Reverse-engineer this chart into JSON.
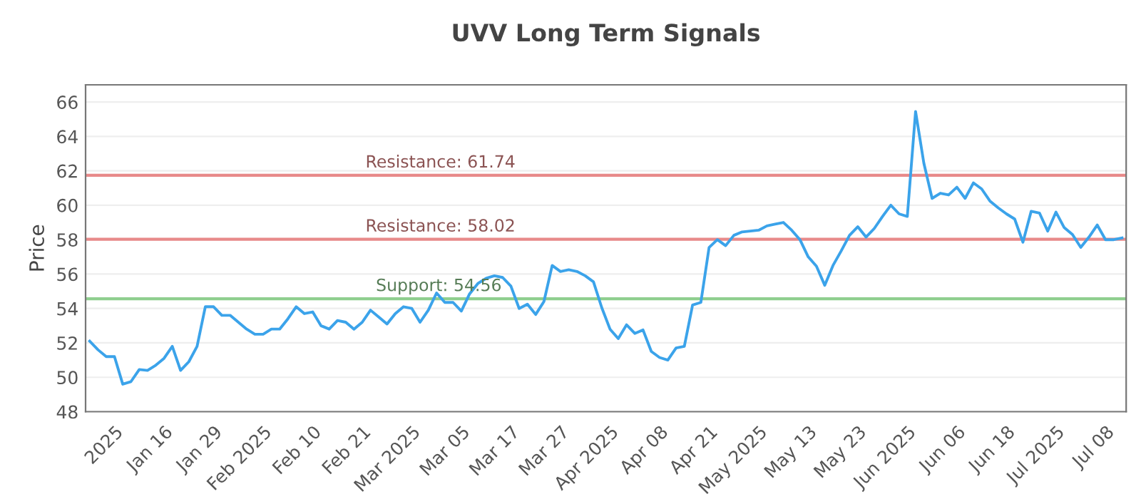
{
  "chart_data": {
    "type": "line",
    "title": "UVV Long Term Signals",
    "ylabel": "Price",
    "categories": [
      null,
      null,
      null,
      "2025",
      null,
      null,
      null,
      null,
      null,
      "Jan 16",
      null,
      null,
      null,
      null,
      null,
      "Jan 29",
      null,
      null,
      null,
      null,
      null,
      "Feb 2025",
      null,
      null,
      null,
      null,
      null,
      "Feb 10",
      null,
      null,
      null,
      null,
      null,
      "Feb 21",
      null,
      null,
      null,
      null,
      null,
      "Mar 2025",
      null,
      null,
      null,
      null,
      null,
      "Mar 05",
      null,
      null,
      null,
      null,
      null,
      "Mar 17",
      null,
      null,
      null,
      null,
      null,
      "Mar 27",
      null,
      null,
      null,
      null,
      null,
      "Apr 2025",
      null,
      null,
      null,
      null,
      null,
      "Apr 08",
      null,
      null,
      null,
      null,
      null,
      "Apr 21",
      null,
      null,
      null,
      null,
      null,
      "May 2025",
      null,
      null,
      null,
      null,
      null,
      "May 13",
      null,
      null,
      null,
      null,
      null,
      "May 23",
      null,
      null,
      null,
      null,
      null,
      "Jun 2025",
      null,
      null,
      null,
      null,
      null,
      "Jun 06",
      null,
      null,
      null,
      null,
      null,
      "Jun 18",
      null,
      null,
      null,
      null,
      null,
      "Jul 2025",
      null,
      null,
      null,
      null,
      null,
      "Jul 08",
      null,
      null
    ],
    "series": [
      {
        "color": "#3ba3ea",
        "values": [
          52.1,
          51.6,
          51.2,
          51.2,
          49.6,
          49.75,
          50.45,
          50.4,
          50.7,
          51.1,
          51.8,
          50.4,
          50.9,
          51.8,
          54.1,
          54.1,
          53.6,
          53.6,
          53.2,
          52.8,
          52.5,
          52.5,
          52.8,
          52.8,
          53.4,
          54.1,
          53.7,
          53.8,
          53.0,
          52.8,
          53.3,
          53.2,
          52.8,
          53.2,
          53.9,
          53.5,
          53.1,
          53.7,
          54.1,
          54.0,
          53.2,
          53.9,
          54.9,
          54.35,
          54.35,
          53.85,
          54.85,
          55.45,
          55.75,
          55.9,
          55.8,
          55.3,
          54.0,
          54.25,
          53.65,
          54.4,
          56.5,
          56.15,
          56.25,
          56.15,
          55.9,
          55.55,
          54.05,
          52.8,
          52.25,
          53.05,
          52.55,
          52.75,
          51.5,
          51.15,
          51.0,
          51.7,
          51.8,
          54.2,
          54.35,
          57.55,
          58.0,
          57.65,
          58.25,
          58.45,
          58.5,
          58.55,
          58.8,
          58.9,
          59.0,
          58.55,
          58.0,
          57.0,
          56.45,
          55.35,
          56.5,
          57.35,
          58.25,
          58.75,
          58.15,
          58.65,
          59.35,
          60.0,
          59.5,
          59.35,
          65.45,
          62.45,
          60.4,
          60.7,
          60.6,
          61.05,
          60.4,
          61.3,
          60.95,
          60.25,
          59.85,
          59.5,
          59.2,
          57.85,
          59.65,
          59.55,
          58.5,
          59.6,
          58.7,
          58.3,
          57.55,
          58.15,
          58.85,
          58.0,
          58.0,
          58.1
        ]
      }
    ],
    "ylim": [
      48,
      67
    ],
    "yticks": [
      48,
      50,
      52,
      54,
      56,
      58,
      60,
      62,
      64,
      66
    ],
    "grid": "y",
    "legend": false,
    "ref_lines": [
      {
        "axis": "y",
        "value": 61.74,
        "label": "Resistance: 61.74",
        "color": "#e88a8a"
      },
      {
        "axis": "y",
        "value": 58.02,
        "label": "Resistance: 58.02",
        "color": "#e88a8a"
      },
      {
        "axis": "y",
        "value": 54.56,
        "label": "Support: 54.56",
        "color": "#8fcf8f"
      }
    ]
  }
}
